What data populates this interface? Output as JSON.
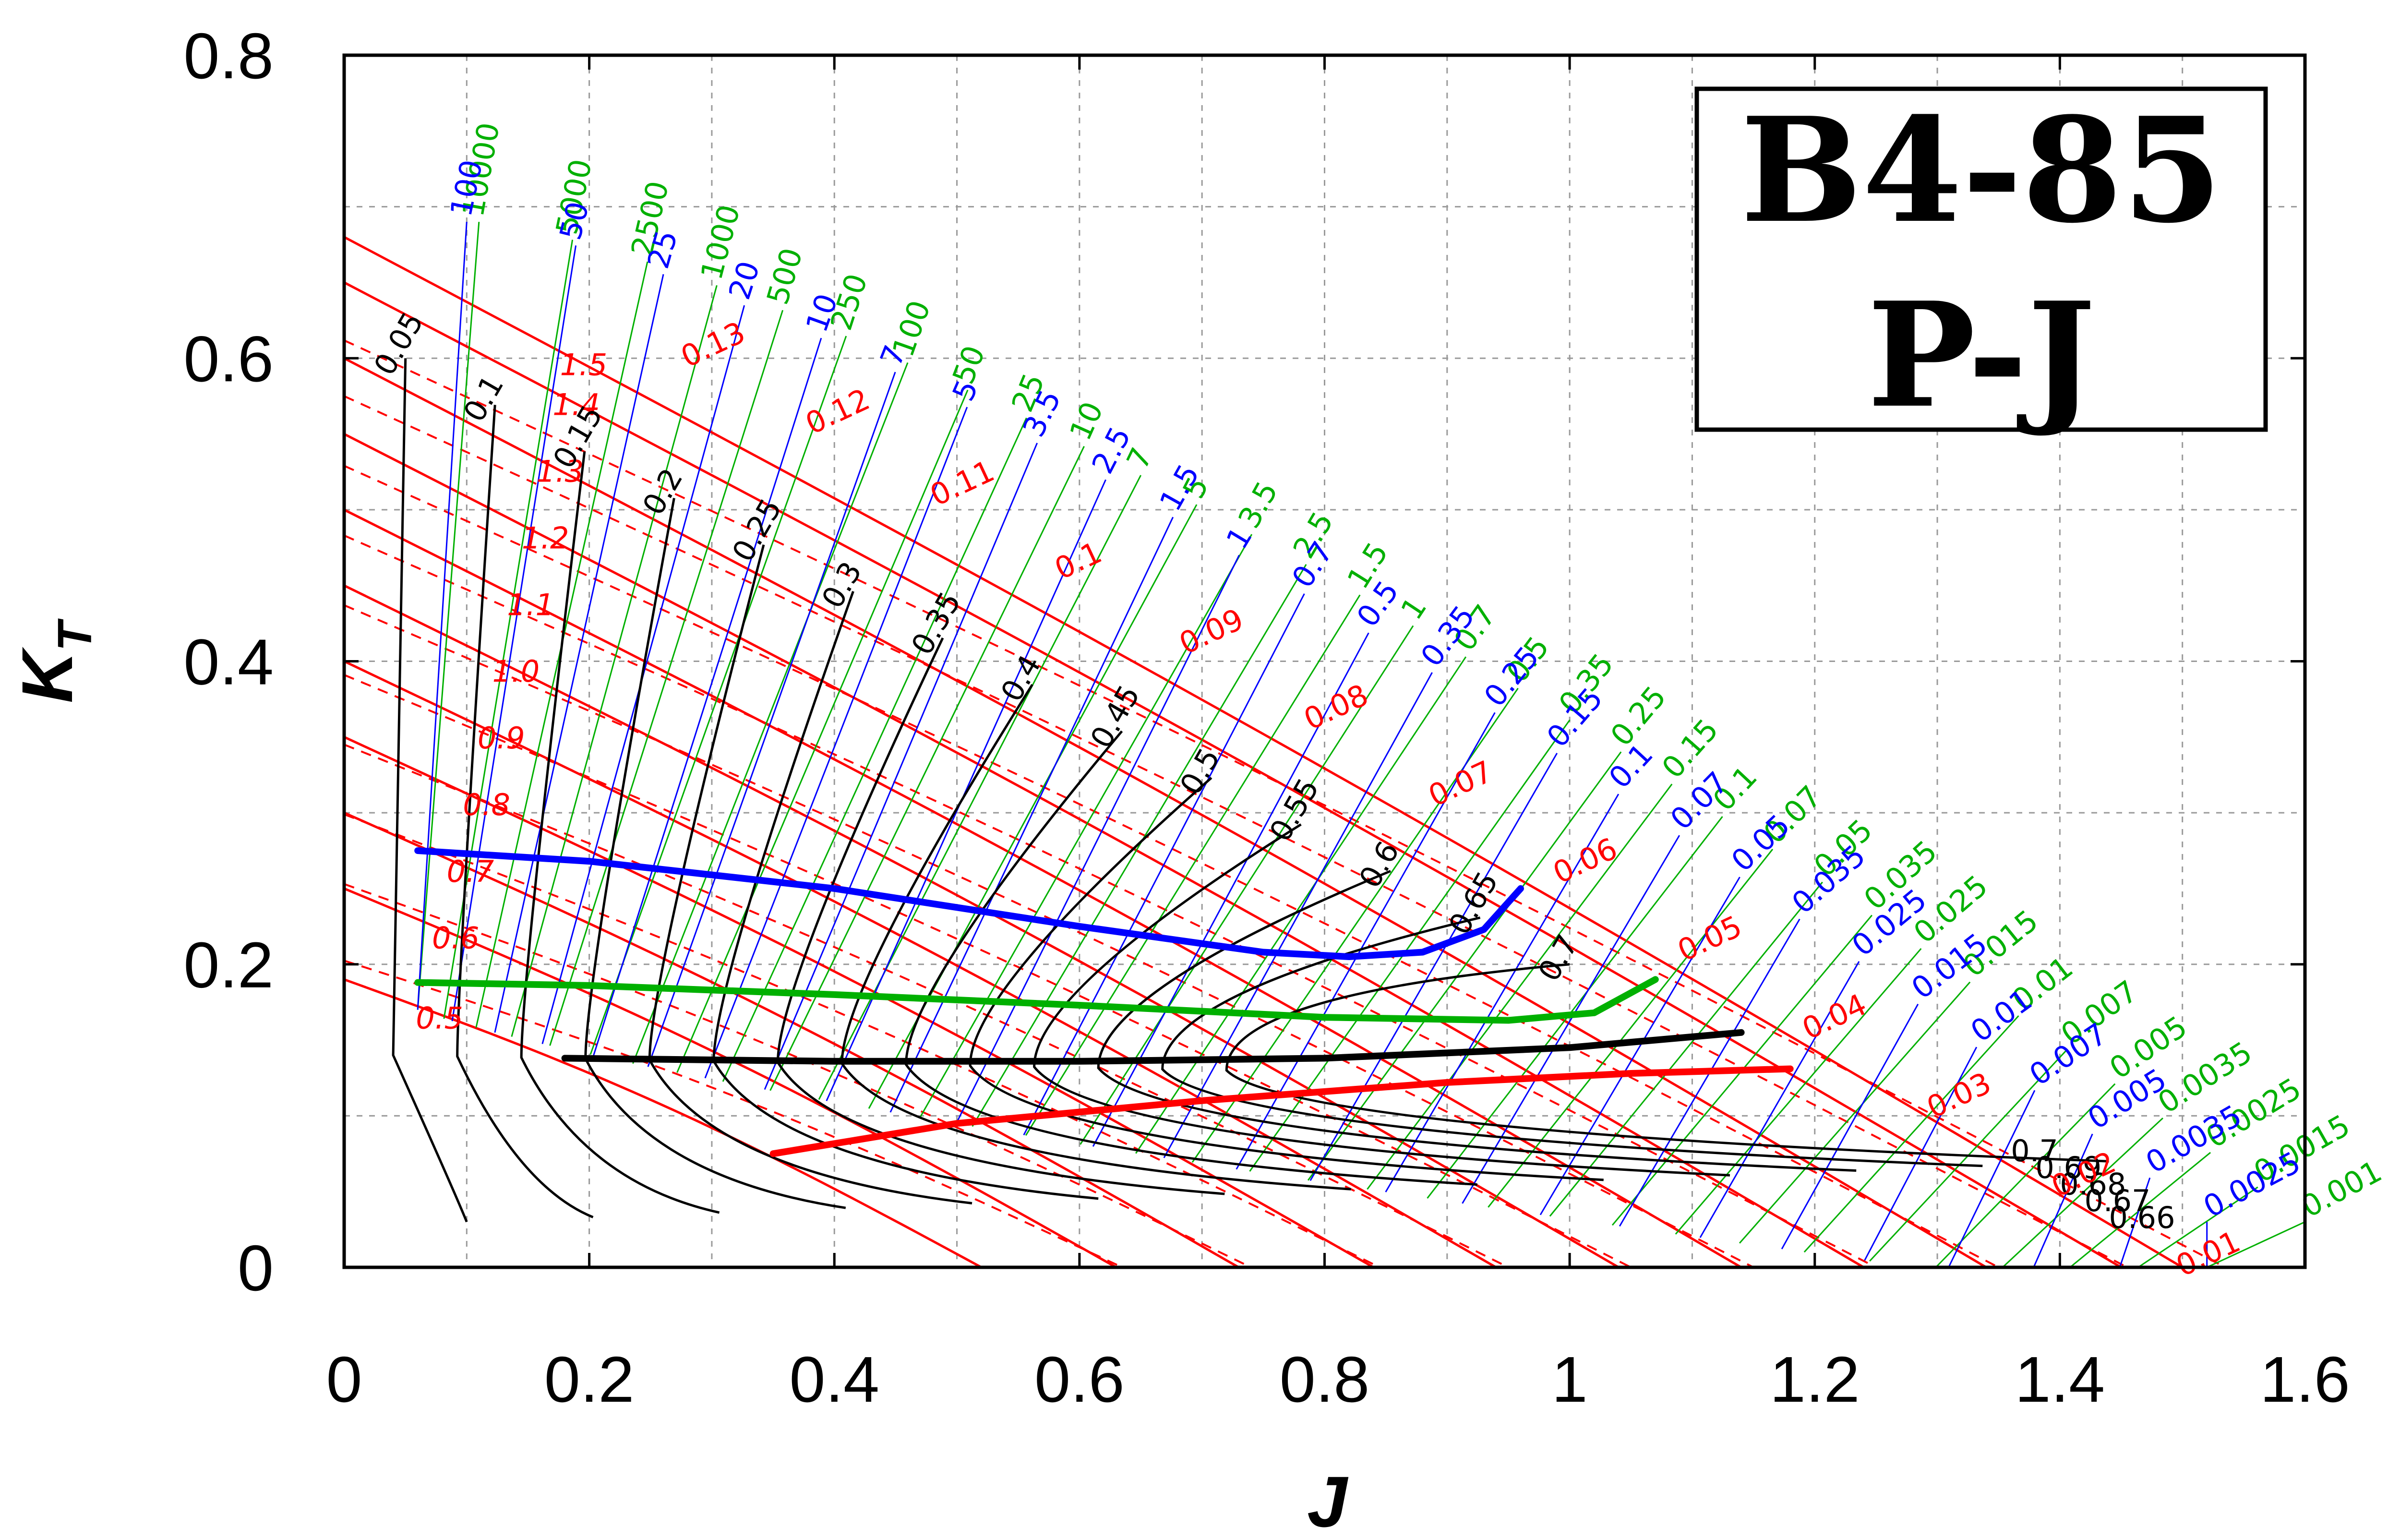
{
  "chart_data": {
    "type": "line",
    "title_box": {
      "line1": "B4-85",
      "line2": "P-J"
    },
    "xlabel": "J",
    "ylabel": {
      "main": "K",
      "sub": "T"
    },
    "xlim": [
      0,
      1.6
    ],
    "ylim": [
      0,
      0.8
    ],
    "x_ticks": [
      "0",
      "0.2",
      "0.4",
      "0.6",
      "0.8",
      "1",
      "1.2",
      "1.4",
      "1.6"
    ],
    "y_ticks": [
      "0",
      "0.2",
      "0.4",
      "0.6",
      "0.8"
    ],
    "grid": true,
    "colors": {
      "pitch": "#ff0000",
      "efficiency": "#000000",
      "param_blue": "#0000ff",
      "param_green": "#00b000",
      "envelope_blue": "#0000ff",
      "envelope_green": "#00b000",
      "envelope_black": "#000000",
      "envelope_red": "#ff0000"
    },
    "pitch_ratio_curves": {
      "kt_at_j0": [
        0.19,
        0.25,
        0.3,
        0.35,
        0.4,
        0.45,
        0.5,
        0.55,
        0.6,
        0.65,
        0.68
      ],
      "j_at_kt0": [
        0.52,
        0.63,
        0.73,
        0.84,
        0.94,
        1.04,
        1.14,
        1.24,
        1.34,
        1.45,
        1.5
      ],
      "labels": [
        "0.5",
        "0.6",
        "0.7",
        "0.8",
        "0.9",
        "1.0",
        "1.1",
        "1.2",
        "1.3",
        "1.4",
        "1.5"
      ]
    },
    "sigma_labels_red": [
      "0.13",
      "0.12",
      "0.11",
      "0.1",
      "0.09",
      "0.08",
      "0.07",
      "0.06",
      "0.05",
      "0.04",
      "0.03",
      "0.02",
      "0.01"
    ],
    "efficiency_labels": [
      "0.05",
      "0.1",
      "0.15",
      "0.2",
      "0.25",
      "0.3",
      "0.35",
      "0.4",
      "0.45",
      "0.5",
      "0.55",
      "0.6",
      "0.65",
      "0.7",
      "0.7",
      "0.69",
      "0.68",
      "0.67",
      "0.66"
    ],
    "blue_param_labels": [
      "100",
      "50",
      "25",
      "20",
      "10",
      "7",
      "5",
      "3.5",
      "2.5",
      "1.5",
      "1",
      "0.7",
      "0.5",
      "0.35",
      "0.25",
      "0.15",
      "0.1",
      "0.07",
      "0.05",
      "0.035",
      "0.025",
      "0.015",
      "0.01",
      "0.007",
      "0.005",
      "0.0035",
      "0.0025"
    ],
    "green_param_labels": [
      "10000",
      "5000",
      "2500",
      "1000",
      "500",
      "250",
      "100",
      "50",
      "25",
      "10",
      "7",
      "5",
      "3.5",
      "2.5",
      "1.5",
      "1",
      "0.7",
      "0.5",
      "0.35",
      "0.25",
      "0.15",
      "0.1",
      "0.07",
      "0.05",
      "0.035",
      "0.025",
      "0.015",
      "0.01",
      "0.007",
      "0.005",
      "0.0035",
      "0.0025",
      "0.0015",
      "0.001"
    ],
    "series": [
      {
        "color": "#0000ff",
        "x": [
          0.06,
          0.2,
          0.4,
          0.6,
          0.75,
          0.82,
          0.88,
          0.93,
          0.96
        ],
        "y": [
          0.275,
          0.268,
          0.25,
          0.225,
          0.208,
          0.205,
          0.208,
          0.223,
          0.25
        ]
      },
      {
        "color": "#00b000",
        "x": [
          0.06,
          0.2,
          0.4,
          0.6,
          0.8,
          0.95,
          1.02,
          1.07
        ],
        "y": [
          0.188,
          0.186,
          0.18,
          0.173,
          0.165,
          0.163,
          0.168,
          0.19
        ]
      },
      {
        "color": "#000000",
        "x": [
          0.18,
          0.4,
          0.6,
          0.8,
          1.0,
          1.14
        ],
        "y": [
          0.138,
          0.136,
          0.136,
          0.138,
          0.145,
          0.155
        ]
      },
      {
        "color": "#ff0000",
        "x": [
          0.35,
          0.5,
          0.7,
          0.9,
          1.05,
          1.18
        ],
        "y": [
          0.075,
          0.095,
          0.11,
          0.122,
          0.128,
          0.131
        ]
      }
    ]
  }
}
